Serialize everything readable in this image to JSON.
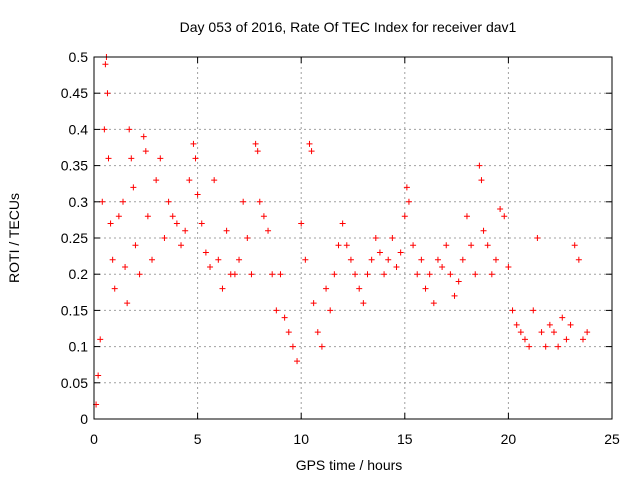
{
  "chart_data": {
    "type": "scatter",
    "title": "Day 053 of 2016, Rate Of TEC Index for receiver dav1",
    "xlabel": "GPS time / hours",
    "ylabel": "ROTI / TECUs",
    "xlim": [
      0,
      25
    ],
    "ylim": [
      0,
      0.5
    ],
    "xticks": [
      "0",
      "5",
      "10",
      "15",
      "20",
      "25"
    ],
    "yticks": [
      "0",
      "0.05",
      "0.1",
      "0.15",
      "0.2",
      "0.25",
      "0.3",
      "0.35",
      "0.4",
      "0.45",
      "0.5"
    ],
    "grid": true,
    "marker": "plus",
    "color": "#ff0000",
    "series": [
      {
        "points": [
          [
            0.1,
            0.02
          ],
          [
            0.2,
            0.06
          ],
          [
            0.3,
            0.11
          ],
          [
            0.4,
            0.3
          ],
          [
            0.5,
            0.4
          ],
          [
            0.55,
            0.49
          ],
          [
            0.6,
            0.5
          ],
          [
            0.65,
            0.45
          ],
          [
            0.7,
            0.36
          ],
          [
            0.8,
            0.27
          ],
          [
            0.9,
            0.22
          ],
          [
            1.0,
            0.18
          ],
          [
            1.2,
            0.28
          ],
          [
            1.4,
            0.3
          ],
          [
            1.5,
            0.21
          ],
          [
            1.6,
            0.16
          ],
          [
            1.7,
            0.4
          ],
          [
            1.8,
            0.36
          ],
          [
            1.9,
            0.32
          ],
          [
            2.0,
            0.24
          ],
          [
            2.2,
            0.2
          ],
          [
            2.4,
            0.39
          ],
          [
            2.5,
            0.37
          ],
          [
            2.6,
            0.28
          ],
          [
            2.8,
            0.22
          ],
          [
            3.0,
            0.33
          ],
          [
            3.2,
            0.36
          ],
          [
            3.4,
            0.25
          ],
          [
            3.6,
            0.3
          ],
          [
            3.8,
            0.28
          ],
          [
            4.0,
            0.27
          ],
          [
            4.2,
            0.24
          ],
          [
            4.4,
            0.26
          ],
          [
            4.6,
            0.33
          ],
          [
            4.8,
            0.38
          ],
          [
            4.9,
            0.36
          ],
          [
            5.0,
            0.31
          ],
          [
            5.2,
            0.27
          ],
          [
            5.4,
            0.23
          ],
          [
            5.6,
            0.21
          ],
          [
            5.8,
            0.33
          ],
          [
            6.0,
            0.22
          ],
          [
            6.2,
            0.18
          ],
          [
            6.4,
            0.26
          ],
          [
            6.6,
            0.2
          ],
          [
            6.8,
            0.2
          ],
          [
            7.0,
            0.22
          ],
          [
            7.2,
            0.3
          ],
          [
            7.4,
            0.25
          ],
          [
            7.6,
            0.2
          ],
          [
            7.8,
            0.38
          ],
          [
            7.9,
            0.37
          ],
          [
            8.0,
            0.3
          ],
          [
            8.2,
            0.28
          ],
          [
            8.4,
            0.26
          ],
          [
            8.6,
            0.2
          ],
          [
            8.8,
            0.15
          ],
          [
            9.0,
            0.2
          ],
          [
            9.2,
            0.14
          ],
          [
            9.4,
            0.12
          ],
          [
            9.6,
            0.1
          ],
          [
            9.8,
            0.08
          ],
          [
            10.0,
            0.27
          ],
          [
            10.2,
            0.22
          ],
          [
            10.4,
            0.38
          ],
          [
            10.5,
            0.37
          ],
          [
            10.6,
            0.16
          ],
          [
            10.8,
            0.12
          ],
          [
            11.0,
            0.1
          ],
          [
            11.2,
            0.18
          ],
          [
            11.4,
            0.15
          ],
          [
            11.6,
            0.2
          ],
          [
            11.8,
            0.24
          ],
          [
            12.0,
            0.27
          ],
          [
            12.2,
            0.24
          ],
          [
            12.4,
            0.22
          ],
          [
            12.6,
            0.2
          ],
          [
            12.8,
            0.18
          ],
          [
            13.0,
            0.16
          ],
          [
            13.2,
            0.2
          ],
          [
            13.4,
            0.22
          ],
          [
            13.6,
            0.25
          ],
          [
            13.8,
            0.23
          ],
          [
            14.0,
            0.2
          ],
          [
            14.2,
            0.22
          ],
          [
            14.4,
            0.25
          ],
          [
            14.6,
            0.21
          ],
          [
            14.8,
            0.23
          ],
          [
            15.0,
            0.28
          ],
          [
            15.1,
            0.32
          ],
          [
            15.2,
            0.3
          ],
          [
            15.4,
            0.24
          ],
          [
            15.6,
            0.2
          ],
          [
            15.8,
            0.22
          ],
          [
            16.0,
            0.18
          ],
          [
            16.2,
            0.2
          ],
          [
            16.4,
            0.16
          ],
          [
            16.6,
            0.22
          ],
          [
            16.8,
            0.21
          ],
          [
            17.0,
            0.24
          ],
          [
            17.2,
            0.2
          ],
          [
            17.4,
            0.17
          ],
          [
            17.6,
            0.19
          ],
          [
            17.8,
            0.22
          ],
          [
            18.0,
            0.28
          ],
          [
            18.2,
            0.24
          ],
          [
            18.4,
            0.2
          ],
          [
            18.6,
            0.35
          ],
          [
            18.7,
            0.33
          ],
          [
            18.8,
            0.26
          ],
          [
            19.0,
            0.24
          ],
          [
            19.2,
            0.2
          ],
          [
            19.4,
            0.22
          ],
          [
            19.6,
            0.29
          ],
          [
            19.8,
            0.28
          ],
          [
            20.0,
            0.21
          ],
          [
            20.2,
            0.15
          ],
          [
            20.4,
            0.13
          ],
          [
            20.6,
            0.12
          ],
          [
            20.8,
            0.11
          ],
          [
            21.0,
            0.1
          ],
          [
            21.2,
            0.15
          ],
          [
            21.4,
            0.25
          ],
          [
            21.6,
            0.12
          ],
          [
            21.8,
            0.1
          ],
          [
            22.0,
            0.13
          ],
          [
            22.2,
            0.12
          ],
          [
            22.4,
            0.1
          ],
          [
            22.6,
            0.14
          ],
          [
            22.8,
            0.11
          ],
          [
            23.0,
            0.13
          ],
          [
            23.2,
            0.24
          ],
          [
            23.4,
            0.22
          ],
          [
            23.6,
            0.11
          ],
          [
            23.8,
            0.12
          ]
        ]
      }
    ]
  }
}
